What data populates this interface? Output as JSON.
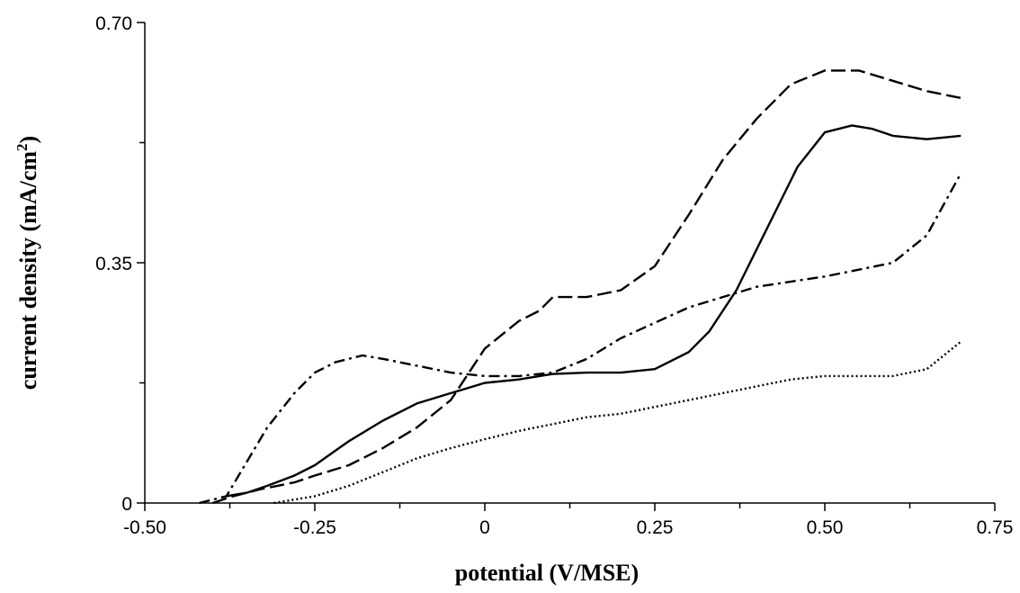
{
  "chart_data": {
    "type": "line",
    "title": "",
    "xlabel": "potential (V/MSE)",
    "ylabel_main": "current density (mA/cm",
    "ylabel_sup": "2",
    "ylabel_close": ")",
    "xlim": [
      -0.5,
      0.75
    ],
    "ylim": [
      0,
      0.7
    ],
    "x_ticks": [
      -0.5,
      -0.25,
      0,
      0.25,
      0.5,
      0.75
    ],
    "x_tick_labels": [
      "-0.50",
      "-0.25",
      "0",
      "0.25",
      "0.50",
      "0.75"
    ],
    "y_ticks": [
      0,
      0.35,
      0.7
    ],
    "y_tick_labels": [
      "0",
      "0.35",
      "0.70"
    ],
    "y_minor_ticks": [
      0.175,
      0.525
    ],
    "x_minor_ticks": [
      -0.375,
      -0.125,
      0.125,
      0.375,
      0.625
    ],
    "grid": false,
    "legend": "none",
    "series": [
      {
        "style": "solid",
        "x": [
          -0.38,
          -0.35,
          -0.32,
          -0.28,
          -0.25,
          -0.2,
          -0.15,
          -0.1,
          -0.05,
          0.0,
          0.05,
          0.1,
          0.15,
          0.2,
          0.25,
          0.3,
          0.33,
          0.37,
          0.4,
          0.43,
          0.46,
          0.5,
          0.54,
          0.57,
          0.6,
          0.65,
          0.7
        ],
        "y": [
          0.01,
          0.015,
          0.025,
          0.04,
          0.055,
          0.09,
          0.12,
          0.145,
          0.16,
          0.175,
          0.18,
          0.188,
          0.19,
          0.19,
          0.195,
          0.22,
          0.25,
          0.31,
          0.37,
          0.43,
          0.49,
          0.54,
          0.55,
          0.545,
          0.535,
          0.53,
          0.535
        ]
      },
      {
        "style": "dashed",
        "x": [
          -0.4,
          -0.37,
          -0.33,
          -0.28,
          -0.25,
          -0.2,
          -0.15,
          -0.1,
          -0.05,
          0.0,
          0.05,
          0.08,
          0.1,
          0.15,
          0.2,
          0.25,
          0.3,
          0.35,
          0.4,
          0.45,
          0.5,
          0.55,
          0.6,
          0.65,
          0.7
        ],
        "y": [
          0.0,
          0.01,
          0.02,
          0.03,
          0.04,
          0.055,
          0.08,
          0.11,
          0.15,
          0.225,
          0.265,
          0.28,
          0.3,
          0.3,
          0.31,
          0.345,
          0.42,
          0.5,
          0.56,
          0.61,
          0.63,
          0.63,
          0.615,
          0.6,
          0.59
        ]
      },
      {
        "style": "dash-dot",
        "x": [
          -0.42,
          -0.4,
          -0.38,
          -0.35,
          -0.32,
          -0.28,
          -0.25,
          -0.22,
          -0.18,
          -0.15,
          -0.1,
          -0.05,
          0.0,
          0.05,
          0.1,
          0.15,
          0.2,
          0.3,
          0.35,
          0.4,
          0.5,
          0.6,
          0.65,
          0.7
        ],
        "y": [
          0.0,
          0.005,
          0.01,
          0.06,
          0.11,
          0.16,
          0.19,
          0.205,
          0.215,
          0.21,
          0.2,
          0.19,
          0.185,
          0.185,
          0.19,
          0.21,
          0.24,
          0.285,
          0.3,
          0.315,
          0.33,
          0.35,
          0.39,
          0.48
        ]
      },
      {
        "style": "dotted",
        "x": [
          -0.31,
          -0.25,
          -0.2,
          -0.15,
          -0.1,
          -0.05,
          0.0,
          0.05,
          0.1,
          0.15,
          0.2,
          0.25,
          0.3,
          0.35,
          0.4,
          0.45,
          0.5,
          0.55,
          0.6,
          0.65,
          0.7
        ],
        "y": [
          0.0,
          0.01,
          0.025,
          0.045,
          0.065,
          0.08,
          0.093,
          0.105,
          0.115,
          0.125,
          0.13,
          0.14,
          0.15,
          0.16,
          0.17,
          0.18,
          0.185,
          0.185,
          0.185,
          0.195,
          0.235
        ]
      }
    ]
  }
}
